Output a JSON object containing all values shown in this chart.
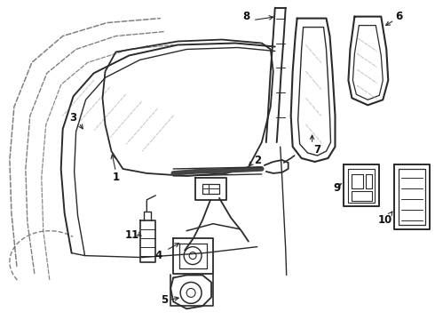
{
  "bg_color": "#ffffff",
  "line_color": "#2a2a2a",
  "dashed_color": "#555555",
  "label_color": "#111111",
  "figsize": [
    4.9,
    3.6
  ],
  "dpi": 100
}
